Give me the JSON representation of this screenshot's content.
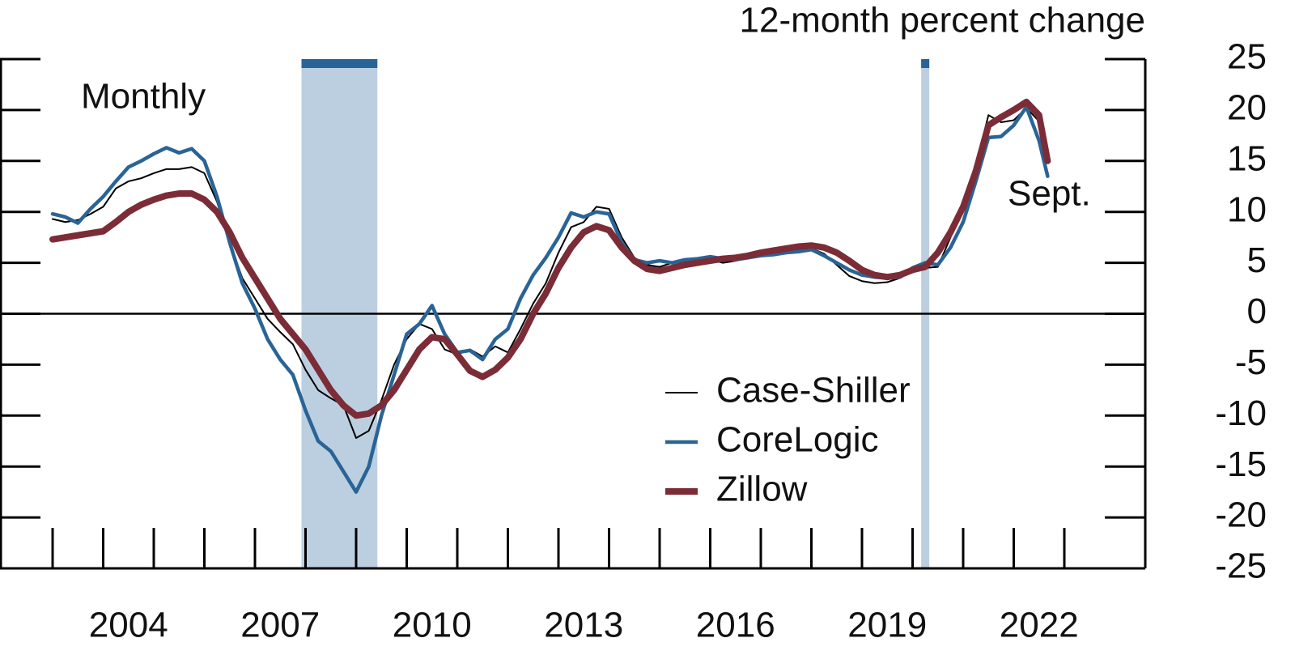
{
  "chart_data": {
    "type": "line",
    "title": "12-month percent change",
    "annotations": [
      "Monthly",
      "Sept."
    ],
    "x": [
      2003.0,
      2003.25,
      2003.5,
      2003.75,
      2004.0,
      2004.25,
      2004.5,
      2004.75,
      2005.0,
      2005.25,
      2005.5,
      2005.75,
      2006.0,
      2006.25,
      2006.5,
      2006.75,
      2007.0,
      2007.25,
      2007.5,
      2007.75,
      2008.0,
      2008.25,
      2008.5,
      2008.75,
      2009.0,
      2009.25,
      2009.5,
      2009.75,
      2010.0,
      2010.25,
      2010.5,
      2010.75,
      2011.0,
      2011.25,
      2011.5,
      2011.75,
      2012.0,
      2012.25,
      2012.5,
      2012.75,
      2013.0,
      2013.25,
      2013.5,
      2013.75,
      2014.0,
      2014.25,
      2014.5,
      2014.75,
      2015.0,
      2015.25,
      2015.5,
      2015.75,
      2016.0,
      2016.25,
      2016.5,
      2016.75,
      2017.0,
      2017.25,
      2017.5,
      2017.75,
      2018.0,
      2018.25,
      2018.5,
      2018.75,
      2019.0,
      2019.25,
      2019.5,
      2019.75,
      2020.0,
      2020.25,
      2020.5,
      2020.75,
      2021.0,
      2021.25,
      2021.5,
      2021.75,
      2022.0,
      2022.25,
      2022.5,
      2022.67
    ],
    "series": [
      {
        "name": "Case-Shiller",
        "color": "#000000",
        "width": 2,
        "values": [
          9.3,
          9.0,
          9.2,
          9.8,
          10.5,
          12.3,
          13.0,
          13.3,
          13.8,
          14.2,
          14.2,
          14.4,
          13.8,
          11,
          7,
          3.5,
          1.5,
          -0.5,
          -1.8,
          -3,
          -5.5,
          -7.5,
          -8.3,
          -9.0,
          -12.2,
          -11.5,
          -8.5,
          -5,
          -2.5,
          -1.0,
          -1.5,
          -3.5,
          -4.0,
          -3.5,
          -4.2,
          -3.2,
          -3.8,
          -1.5,
          1.0,
          3.0,
          6.0,
          8.5,
          9.0,
          10.5,
          10.3,
          7.5,
          5.5,
          4.8,
          4.6,
          5.0,
          5.1,
          5.2,
          5.3,
          5.0,
          5.2,
          5.5,
          5.7,
          5.8,
          6.0,
          6.2,
          6.4,
          5.9,
          4.8,
          3.7,
          3.2,
          3.0,
          3.1,
          3.5,
          4.2,
          4.5,
          4.6,
          7.5,
          10.5,
          14.5,
          19.5,
          18.8,
          19.0,
          20.2,
          18.9,
          null
        ]
      },
      {
        "name": "CoreLogic",
        "color": "#2a6496",
        "width": 4.5,
        "values": [
          9.8,
          9.5,
          8.9,
          10.3,
          11.5,
          13.0,
          14.4,
          15.0,
          15.7,
          16.3,
          15.8,
          16.2,
          15.0,
          11.5,
          7,
          3,
          0.5,
          -2.5,
          -4.5,
          -6,
          -9.5,
          -12.5,
          -13.5,
          -15.5,
          -17.5,
          -15,
          -10,
          -6,
          -2,
          -1,
          0.8,
          -2,
          -3.8,
          -3.6,
          -4.5,
          -2.5,
          -1.5,
          1.5,
          3.8,
          5.5,
          7.5,
          9.9,
          9.5,
          10.0,
          9.8,
          7,
          5.3,
          5.0,
          5.2,
          5.0,
          5.3,
          5.4,
          5.6,
          5.4,
          5.3,
          5.5,
          5.7,
          5.8,
          6.0,
          6.1,
          6.3,
          5.7,
          5.0,
          4.3,
          3.8,
          3.6,
          3.5,
          3.6,
          4.5,
          5.0,
          4.8,
          6.5,
          9,
          13,
          17.3,
          17.4,
          18.5,
          20.3,
          17,
          13.5
        ]
      },
      {
        "name": "Zillow",
        "color": "#7b2c36",
        "width": 8,
        "values": [
          7.3,
          7.5,
          7.7,
          7.9,
          8.1,
          9.0,
          10.0,
          10.7,
          11.2,
          11.6,
          11.8,
          11.8,
          11.2,
          10,
          8,
          5.5,
          3.5,
          1.5,
          -0.5,
          -2,
          -3.5,
          -5.5,
          -7.5,
          -9.0,
          -10.0,
          -9.8,
          -9.0,
          -7.5,
          -5.5,
          -3.5,
          -2.3,
          -2.5,
          -4,
          -5.6,
          -6.2,
          -5.5,
          -4.3,
          -2.5,
          0,
          2,
          4.5,
          6.5,
          8.0,
          8.6,
          8.2,
          6.5,
          5.2,
          4.4,
          4.2,
          4.5,
          4.8,
          5.0,
          5.2,
          5.4,
          5.5,
          5.7,
          6.0,
          6.2,
          6.4,
          6.6,
          6.7,
          6.5,
          6.0,
          5.2,
          4.3,
          3.8,
          3.6,
          3.8,
          4.3,
          4.6,
          6,
          8,
          10.5,
          14,
          18.5,
          19.3,
          20.0,
          20.8,
          19.5,
          15.0
        ]
      }
    ],
    "recessions": [
      [
        2007.92,
        2009.42
      ],
      [
        2020.17,
        2020.33
      ]
    ],
    "recession_color": "#bccfe0",
    "recession_bar_color": "#2a6496",
    "xlim": [
      2001.96,
      2024.6
    ],
    "xticks": [
      {
        "value": 2004.5,
        "label": "2004"
      },
      {
        "value": 2007.5,
        "label": "2007"
      },
      {
        "value": 2010.5,
        "label": "2010"
      },
      {
        "value": 2013.5,
        "label": "2013"
      },
      {
        "value": 2016.5,
        "label": "2016"
      },
      {
        "value": 2019.5,
        "label": "2019"
      },
      {
        "value": 2022.5,
        "label": "2022"
      }
    ],
    "x_tick_marks": [
      2003,
      2004,
      2005,
      2006,
      2007,
      2008,
      2009,
      2010,
      2011,
      2012,
      2013,
      2014,
      2015,
      2016,
      2017,
      2018,
      2019,
      2020,
      2021,
      2022,
      2023
    ],
    "ylim": [
      -25,
      25
    ],
    "yticks": [
      25,
      20,
      15,
      10,
      5,
      0,
      -5,
      -10,
      -15,
      -20,
      -25
    ],
    "zero_line": true
  }
}
